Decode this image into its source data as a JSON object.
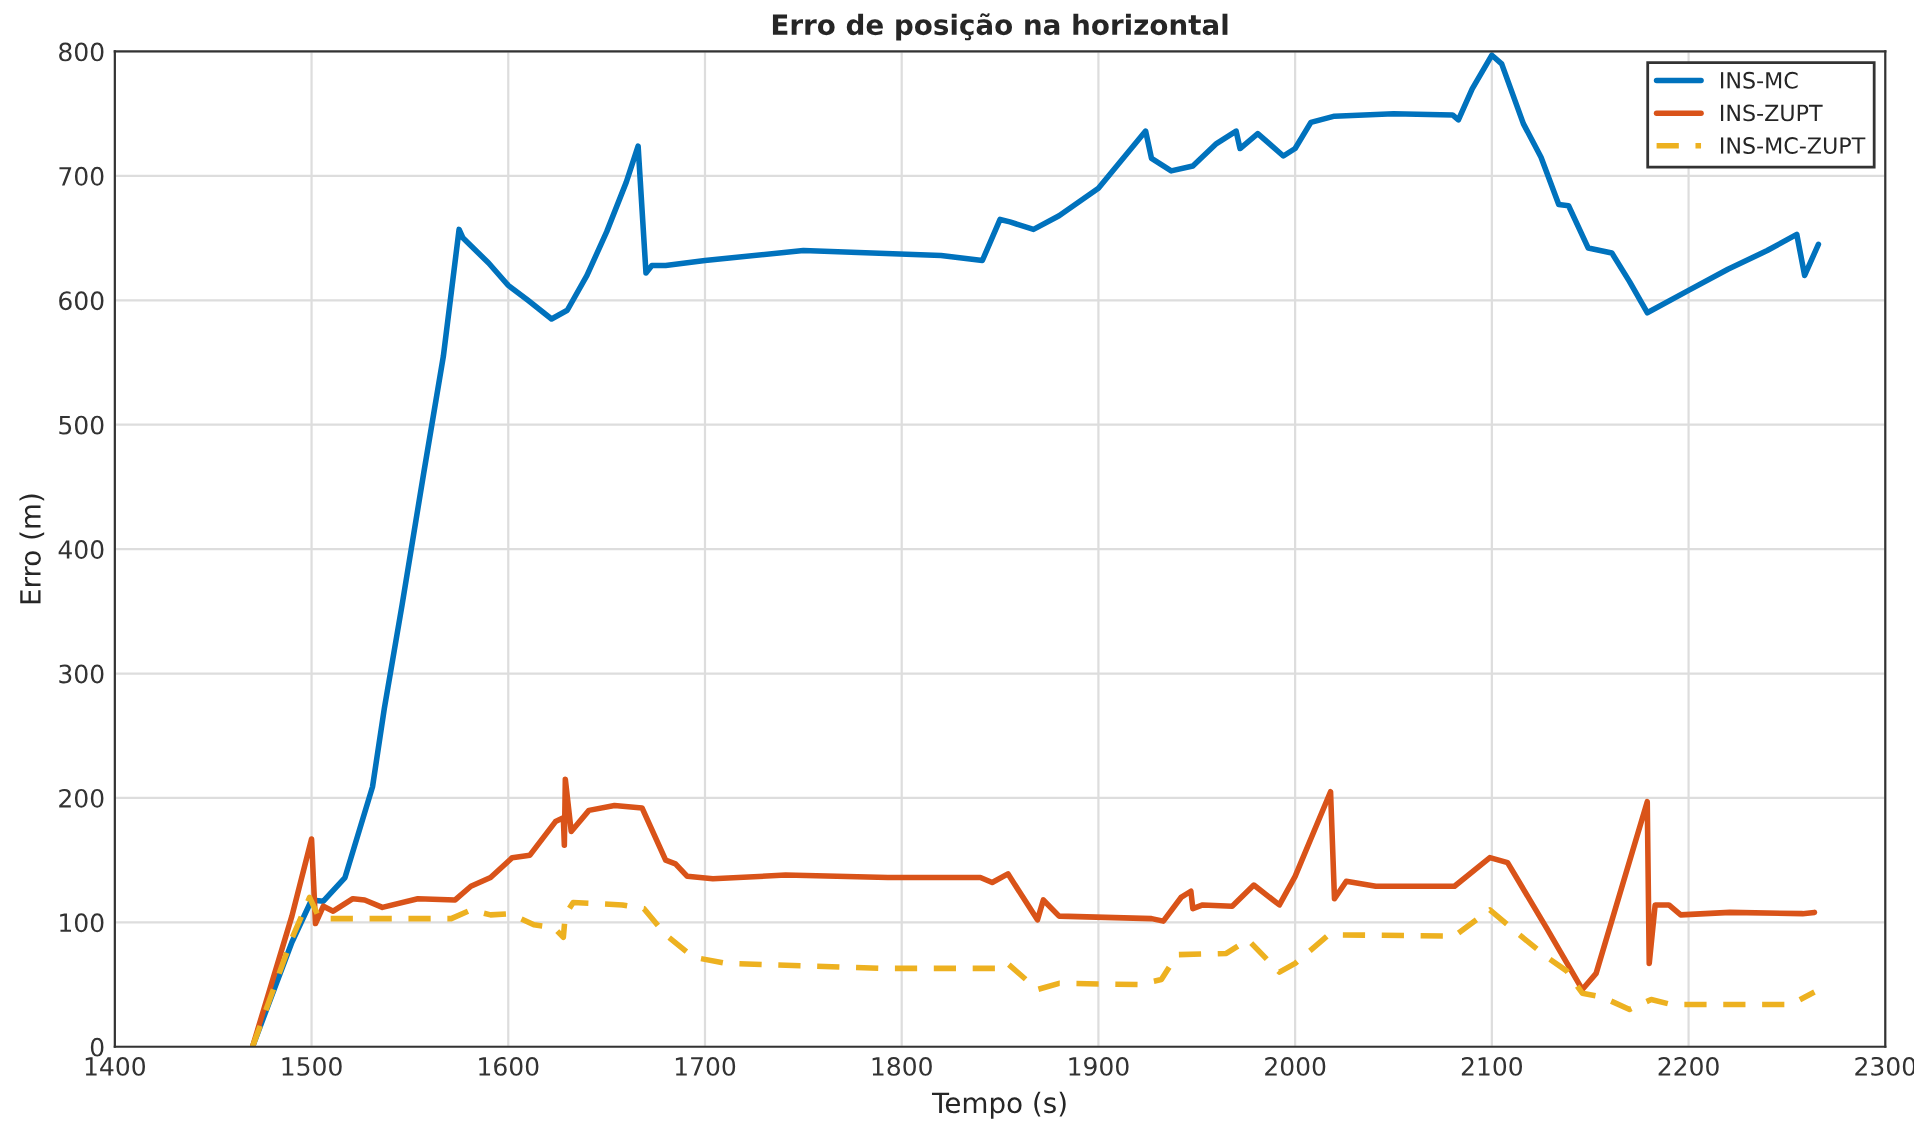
{
  "chart_data": {
    "type": "line",
    "title": "Erro de posição na horizontal",
    "xlabel": "Tempo (s)",
    "ylabel": "Erro (m)",
    "xlim": [
      1400,
      2300
    ],
    "xticks": [
      1400,
      1500,
      1600,
      1700,
      1800,
      1900,
      2000,
      2100,
      2200,
      2300
    ],
    "ylim": [
      0,
      800
    ],
    "yticks": [
      0,
      100,
      200,
      300,
      400,
      500,
      600,
      700,
      800
    ],
    "grid": true,
    "legend": "top right",
    "marker": "none",
    "series": [
      {
        "name": "INS-MC",
        "color": "#0072bd",
        "line_style": "solid",
        "x": [
          1470,
          1490,
          1500,
          1506,
          1517,
          1531,
          1537,
          1546,
          1557,
          1567,
          1575,
          1577,
          1590,
          1600,
          1610,
          1622,
          1630,
          1640,
          1650,
          1660,
          1666,
          1670,
          1673,
          1680,
          1700,
          1750,
          1785,
          1820,
          1841,
          1850,
          1855,
          1867,
          1880,
          1900,
          1924,
          1927,
          1937,
          1948,
          1960,
          1970,
          1972,
          1981,
          1994,
          2000,
          2008,
          2020,
          2050,
          2080,
          2083,
          2090,
          2100,
          2105,
          2116,
          2125,
          2134,
          2139,
          2149,
          2161,
          2170,
          2179,
          2200,
          2220,
          2240,
          2255,
          2259,
          2266
        ],
        "values": [
          0,
          84,
          118,
          117,
          136,
          209,
          272,
          355,
          461,
          555,
          657,
          650,
          630,
          612,
          600,
          585,
          592,
          620,
          655,
          695,
          724,
          622,
          628,
          628,
          632,
          640,
          638,
          636,
          632,
          665,
          663,
          657,
          668,
          690,
          736,
          714,
          704,
          708,
          726,
          736,
          722,
          734,
          716,
          722,
          743,
          748,
          750,
          749,
          745,
          770,
          797,
          790,
          742,
          715,
          677,
          676,
          642,
          638,
          615,
          590,
          608,
          625,
          640,
          653,
          620,
          645
        ]
      },
      {
        "name": "INS-ZUPT",
        "color": "#d95319",
        "line_style": "solid",
        "x": [
          1470,
          1490,
          1500,
          1502,
          1506,
          1511,
          1521,
          1527,
          1536,
          1554,
          1573,
          1581,
          1591,
          1602,
          1611,
          1624,
          1628,
          1628.5,
          1629,
          1632,
          1641,
          1654,
          1668,
          1680,
          1685,
          1691,
          1704,
          1741,
          1793,
          1840,
          1846,
          1854,
          1869,
          1872,
          1880,
          1927,
          1933,
          1942,
          1947,
          1948,
          1953,
          1968,
          1979,
          1992,
          2000,
          2018,
          2020,
          2026,
          2041,
          2081,
          2099,
          2108,
          2128,
          2146,
          2153,
          2179,
          2180,
          2183,
          2190,
          2196,
          2221,
          2258,
          2264
        ],
        "values": [
          0,
          105,
          167,
          99,
          113,
          109,
          119,
          118,
          112,
          119,
          118,
          129,
          136,
          152,
          154,
          181,
          184,
          162,
          215,
          173,
          190,
          194,
          192,
          150,
          147,
          137,
          135,
          138,
          136,
          136,
          132,
          139,
          102,
          118,
          105,
          103,
          101,
          120,
          125,
          111,
          114,
          113,
          130,
          114,
          137,
          205,
          119,
          133,
          129,
          129,
          152,
          148,
          95,
          46,
          59,
          197,
          67,
          114,
          114,
          106,
          108,
          107,
          108
        ]
      },
      {
        "name": "INS-MC-ZUPT",
        "color": "#edb120",
        "line_style": "dashed",
        "x": [
          1470,
          1490,
          1499,
          1504,
          1571,
          1581,
          1591,
          1601,
          1613,
          1623,
          1628,
          1629,
          1633,
          1658,
          1669,
          1680,
          1694,
          1711,
          1791,
          1848,
          1853,
          1869,
          1880,
          1920,
          1932,
          1940,
          1965,
          1976,
          1992,
          2000,
          2017,
          2081,
          2099,
          2114,
          2128,
          2138,
          2146,
          2156,
          2170,
          2181,
          2191,
          2252,
          2264
        ],
        "values": [
          0,
          87,
          120,
          103,
          103,
          110,
          106,
          107,
          98,
          96,
          88,
          106,
          116,
          114,
          111,
          90,
          72,
          67,
          63,
          63,
          68,
          46,
          51,
          50,
          54,
          74,
          75,
          86,
          60,
          67,
          90,
          89,
          110,
          90,
          72,
          61,
          43,
          40,
          30,
          38,
          34,
          34,
          44
        ]
      }
    ]
  }
}
